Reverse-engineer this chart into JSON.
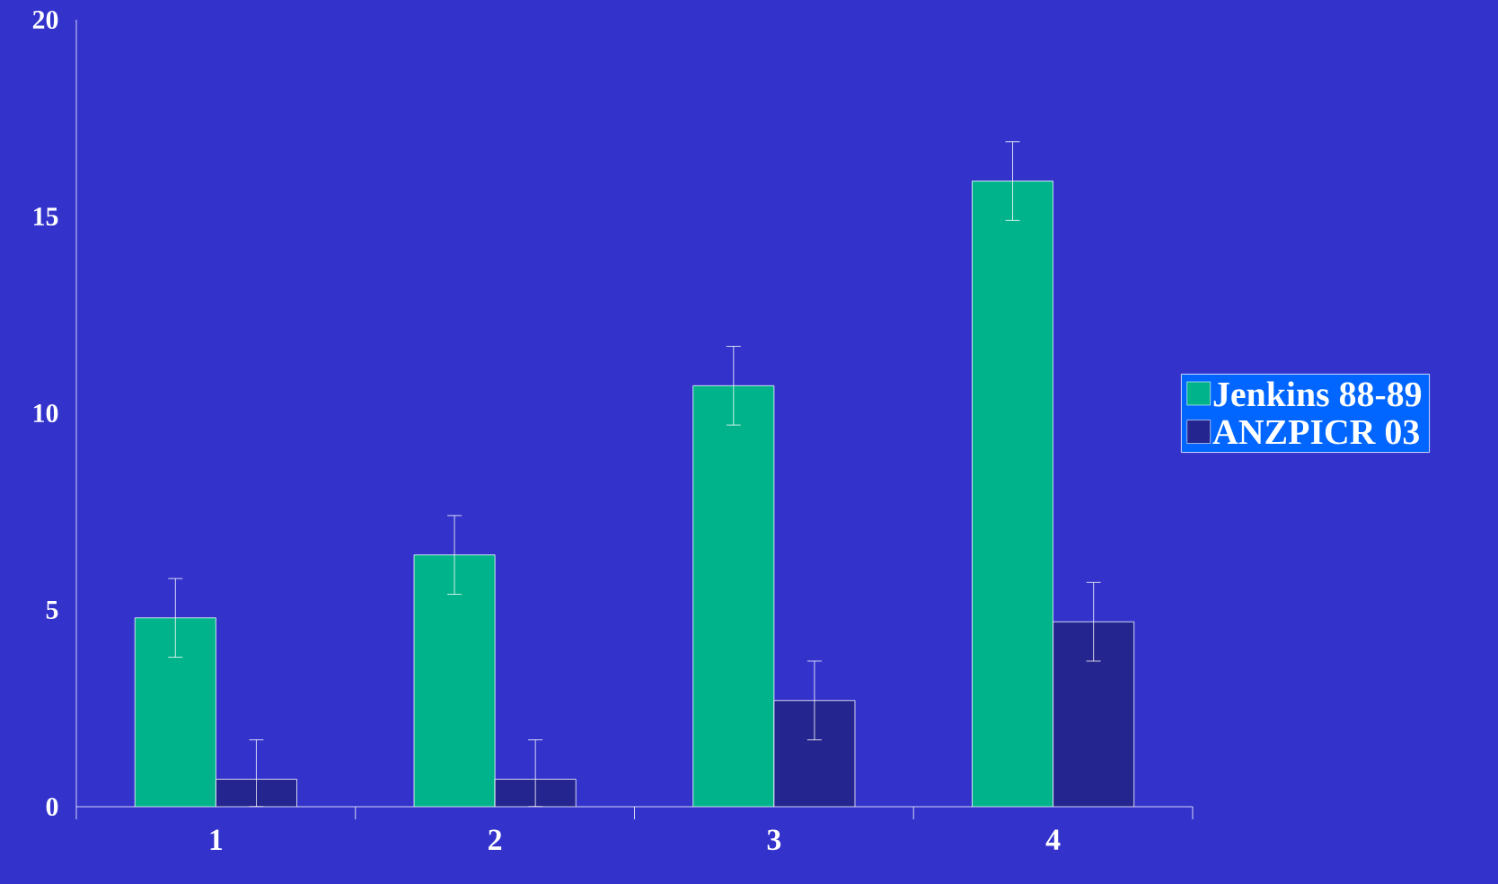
{
  "chart_data": {
    "type": "bar",
    "categories": [
      "1",
      "2",
      "3",
      "4"
    ],
    "series": [
      {
        "name": "Jenkins 88-89",
        "color": "#00b38a",
        "values": [
          4.8,
          6.4,
          10.7,
          15.9
        ],
        "errors": [
          1,
          1,
          1,
          1
        ]
      },
      {
        "name": "ANZPICR 03",
        "color": "#25258f",
        "values": [
          0.7,
          0.7,
          2.7,
          4.7
        ],
        "errors": [
          [
            0,
            1.7
          ],
          [
            0,
            1.7
          ],
          1,
          1
        ]
      }
    ],
    "ylim": [
      0,
      20
    ],
    "yticks": [
      0,
      5,
      10,
      15,
      20
    ],
    "grid": false,
    "legend": "right"
  }
}
